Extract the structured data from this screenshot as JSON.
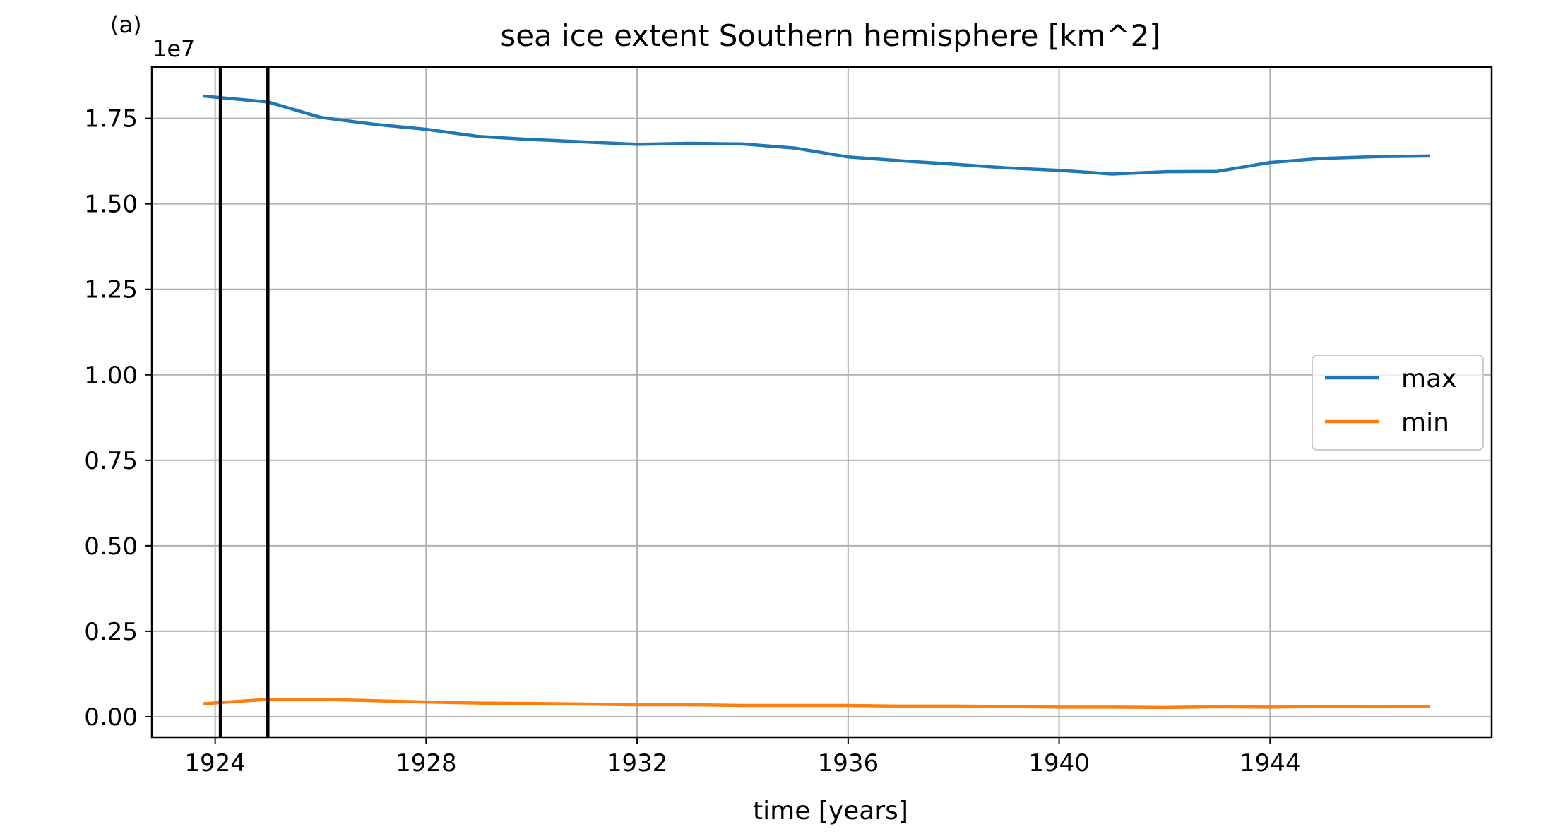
{
  "panel_label": "(a)",
  "chart_data": {
    "type": "line",
    "title": "sea ice extent Southern hemisphere [km^2]",
    "xlabel": "time [years]",
    "ylabel": "",
    "y_offset_label": "1e7",
    "xlim": [
      1922.8,
      1948.2
    ],
    "ylim": [
      -0.06,
      1.9
    ],
    "x_ticks": [
      1924,
      1928,
      1932,
      1936,
      1940,
      1944
    ],
    "x_tick_labels": [
      "1924",
      "1928",
      "1932",
      "1936",
      "1940",
      "1944"
    ],
    "y_ticks": [
      0.0,
      0.25,
      0.5,
      0.75,
      1.0,
      1.25,
      1.5,
      1.75
    ],
    "y_tick_labels": [
      "0.00",
      "0.25",
      "0.50",
      "0.75",
      "1.00",
      "1.25",
      "1.50",
      "1.75"
    ],
    "grid": true,
    "legend_position": "center-right",
    "x": [
      1923.8,
      1925,
      1926,
      1927,
      1928,
      1929,
      1930,
      1931,
      1932,
      1933,
      1934,
      1935,
      1936,
      1937,
      1938,
      1939,
      1940,
      1941,
      1942,
      1943,
      1944,
      1945,
      1946,
      1947
    ],
    "series": [
      {
        "name": "max",
        "color": "#1f77b4",
        "values": [
          1.815,
          1.798,
          1.753,
          1.733,
          1.718,
          1.697,
          1.688,
          1.681,
          1.674,
          1.677,
          1.675,
          1.663,
          1.637,
          1.626,
          1.616,
          1.605,
          1.598,
          1.587,
          1.594,
          1.595,
          1.621,
          1.633,
          1.638,
          1.64
        ]
      },
      {
        "name": "min",
        "color": "#ff7f0e",
        "values": [
          0.038,
          0.051,
          0.051,
          0.047,
          0.043,
          0.04,
          0.039,
          0.037,
          0.035,
          0.035,
          0.033,
          0.033,
          0.033,
          0.031,
          0.031,
          0.03,
          0.028,
          0.028,
          0.027,
          0.029,
          0.028,
          0.03,
          0.029,
          0.03
        ]
      }
    ],
    "vertical_lines": [
      {
        "x": 1924.1,
        "color": "#000000"
      },
      {
        "x": 1925.0,
        "color": "#000000"
      }
    ]
  }
}
